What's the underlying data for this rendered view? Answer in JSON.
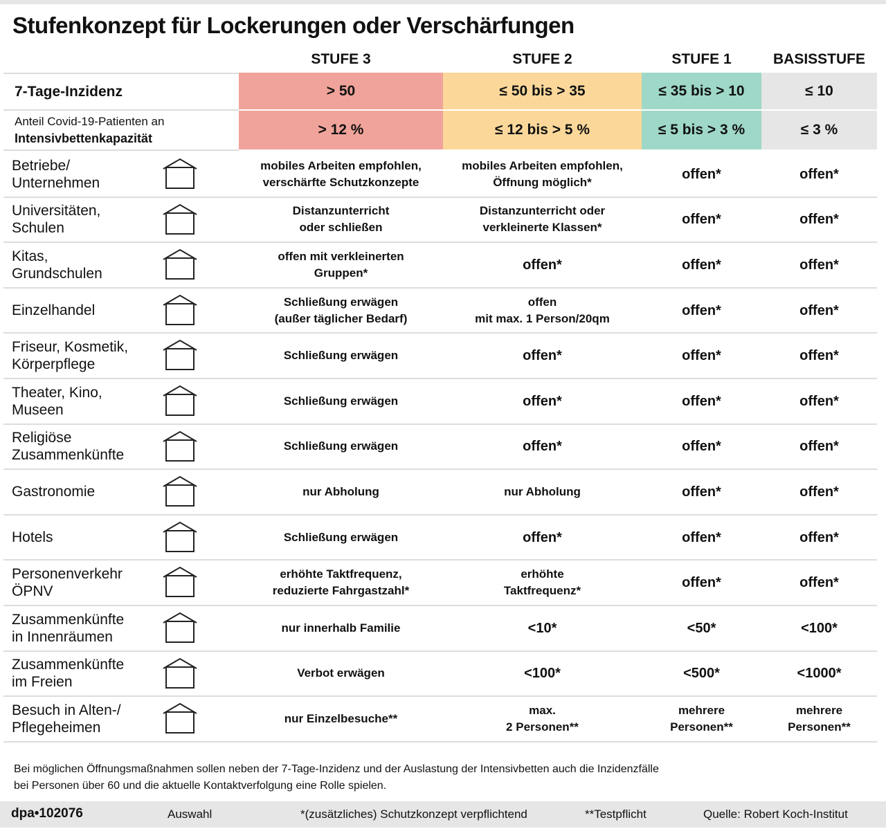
{
  "header": {
    "title": "Stufenkonzept für Lockerungen oder Verschärfungen"
  },
  "columns": [
    "STUFE 3",
    "STUFE 2",
    "STUFE 1",
    "BASISSTUFE"
  ],
  "thresholds": [
    {
      "label": [
        "7-Tage-Inzidenz"
      ],
      "values": [
        "> 50",
        "≤ 50 bis > 35",
        "≤ 35 bis > 10",
        "≤ 10"
      ]
    },
    {
      "label": [
        "Anteil Covid-19-Patienten an",
        "Intensivbettenkapazität"
      ],
      "values": [
        "> 12 %",
        "≤ 12 bis > 5 %",
        "≤ 5 bis > 3 %",
        "≤  3 %"
      ]
    }
  ],
  "rows": [
    {
      "label": [
        "Betriebe/",
        "Unternehmen"
      ],
      "cells": [
        [
          "mobiles Arbeiten empfohlen,",
          "verschärfte Schutzkonzepte"
        ],
        [
          "mobiles Arbeiten empfohlen,",
          "Öffnung möglich*"
        ],
        [
          "offen*"
        ],
        [
          "offen*"
        ]
      ]
    },
    {
      "label": [
        "Universitäten,",
        "Schulen"
      ],
      "cells": [
        [
          "Distanzunterricht",
          "oder schließen"
        ],
        [
          "Distanzunterricht oder",
          "verkleinerte Klassen*"
        ],
        [
          "offen*"
        ],
        [
          "offen*"
        ]
      ]
    },
    {
      "label": [
        "Kitas,",
        "Grundschulen"
      ],
      "cells": [
        [
          "offen mit verkleinerten",
          "Gruppen*"
        ],
        [
          "offen*"
        ],
        [
          "offen*"
        ],
        [
          "offen*"
        ]
      ]
    },
    {
      "label": [
        "Einzelhandel"
      ],
      "cells": [
        [
          "Schließung erwägen",
          "(außer täglicher Bedarf)"
        ],
        [
          "offen",
          "mit max. 1 Person/20qm"
        ],
        [
          "offen*"
        ],
        [
          "offen*"
        ]
      ]
    },
    {
      "label": [
        "Friseur, Kosmetik,",
        "Körperpflege"
      ],
      "cells": [
        [
          "Schließung erwägen"
        ],
        [
          "offen*"
        ],
        [
          "offen*"
        ],
        [
          "offen*"
        ]
      ]
    },
    {
      "label": [
        "Theater, Kino,",
        "Museen"
      ],
      "cells": [
        [
          "Schließung erwägen"
        ],
        [
          "offen*"
        ],
        [
          "offen*"
        ],
        [
          "offen*"
        ]
      ]
    },
    {
      "label": [
        "Religiöse",
        "Zusammenkünfte"
      ],
      "cells": [
        [
          "Schließung erwägen"
        ],
        [
          "offen*"
        ],
        [
          "offen*"
        ],
        [
          "offen*"
        ]
      ]
    },
    {
      "label": [
        "Gastronomie"
      ],
      "cells": [
        [
          "nur Abholung"
        ],
        [
          "nur Abholung"
        ],
        [
          "offen*"
        ],
        [
          "offen*"
        ]
      ]
    },
    {
      "label": [
        "Hotels"
      ],
      "cells": [
        [
          "Schließung erwägen"
        ],
        [
          "offen*"
        ],
        [
          "offen*"
        ],
        [
          "offen*"
        ]
      ]
    },
    {
      "label": [
        "Personenverkehr",
        "ÖPNV"
      ],
      "cells": [
        [
          "erhöhte Taktfrequenz,",
          "reduzierte Fahrgastzahl*"
        ],
        [
          "erhöhte",
          "Taktfrequenz*"
        ],
        [
          "offen*"
        ],
        [
          "offen*"
        ]
      ]
    },
    {
      "label": [
        "Zusammenkünfte",
        "in Innenräumen"
      ],
      "cells": [
        [
          "nur innerhalb Familie"
        ],
        [
          "<10*"
        ],
        [
          "<50*"
        ],
        [
          "<100*"
        ]
      ]
    },
    {
      "label": [
        "Zusammenkünfte",
        "im Freien"
      ],
      "cells": [
        [
          "Verbot erwägen"
        ],
        [
          "<100*"
        ],
        [
          "<500*"
        ],
        [
          "<1000*"
        ]
      ]
    },
    {
      "label": [
        "Besuch in Alten-/",
        "Pflegeheimen"
      ],
      "cells": [
        [
          "nur Einzelbesuche**"
        ],
        [
          "max.",
          "2 Personen**"
        ],
        [
          "mehrere",
          "Personen**"
        ],
        [
          "mehrere",
          "Personen**"
        ]
      ]
    }
  ],
  "note": [
    "Bei möglichen Öffnungsmaßnahmen sollen neben der 7-Tage-Inzidenz und der Auslastung der Intensivbetten auch die Inzidenzfälle",
    "bei Personen über 60 und die aktuelle Kontaktverfolgung eine Rolle spielen."
  ],
  "footer": [
    "dpa•102076",
    "Auswahl",
    "*(zusätzliches) Schutzkonzept verpflichtend",
    "**Testpflicht",
    "Quelle: Robert Koch-Institut"
  ]
}
